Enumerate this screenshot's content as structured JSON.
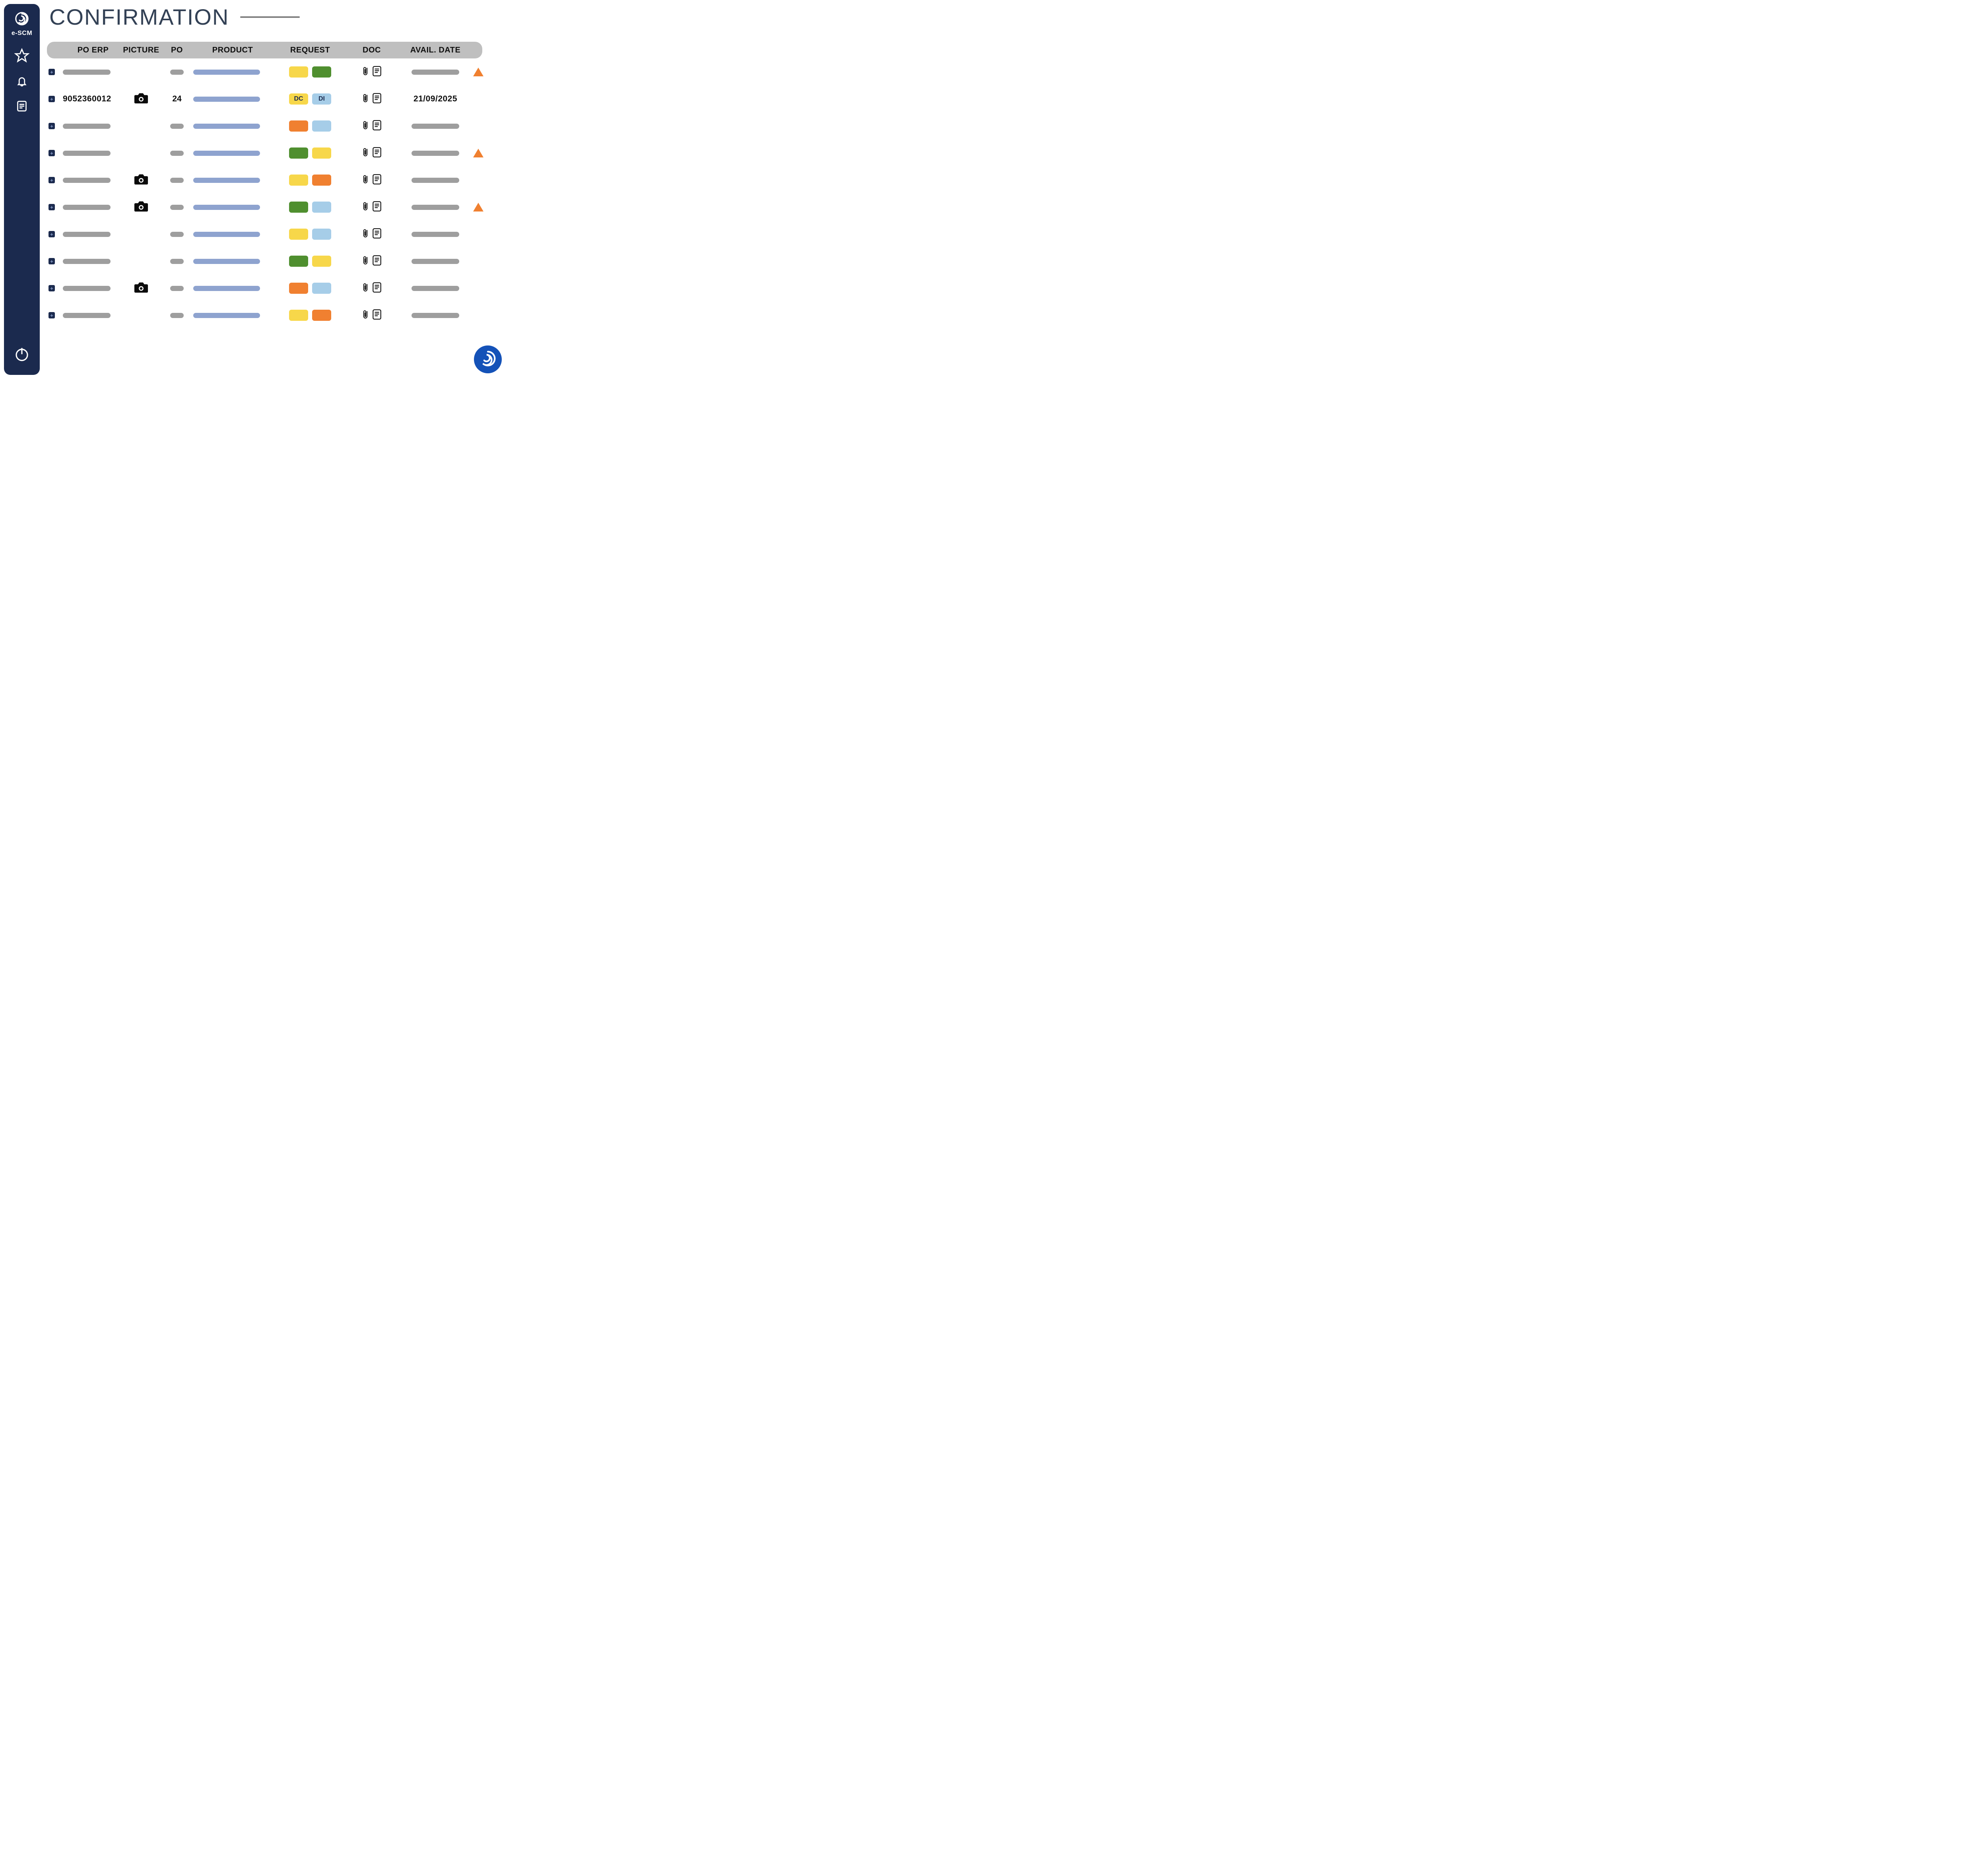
{
  "brand": {
    "name": "e-SCM"
  },
  "page": {
    "title": "CONFIRMATION"
  },
  "colors": {
    "sidebar_bg": "#1b2a4e",
    "header_bg": "#bfbfbf",
    "placeholder_gray": "#9e9e9e",
    "product_bar": "#8ea3cf",
    "alert_orange": "#f08030",
    "pill_yellow": "#f7d74a",
    "pill_green": "#4f8f2f",
    "pill_orange": "#f08030",
    "pill_blue": "#a6cde8",
    "badge_blue": "#1452b8"
  },
  "table": {
    "headers": {
      "po_erp": "PO ERP",
      "picture": "PICTURE",
      "po": "PO",
      "product": "PRODUCT",
      "request": "REQUEST",
      "doc": "DOC",
      "avail_date": "AVAIL. DATE"
    },
    "rows": [
      {
        "po_erp": null,
        "picture": false,
        "po": null,
        "req1": {
          "color": "#f7d74a",
          "label": ""
        },
        "req2": {
          "color": "#4f8f2f",
          "label": ""
        },
        "avail_date": null,
        "alert": true
      },
      {
        "po_erp": "9052360012",
        "picture": true,
        "po": "24",
        "req1": {
          "color": "#f7d74a",
          "label": "DC"
        },
        "req2": {
          "color": "#a6cde8",
          "label": "DI"
        },
        "avail_date": "21/09/2025",
        "alert": false
      },
      {
        "po_erp": null,
        "picture": false,
        "po": null,
        "req1": {
          "color": "#f08030",
          "label": ""
        },
        "req2": {
          "color": "#a6cde8",
          "label": ""
        },
        "avail_date": null,
        "alert": false
      },
      {
        "po_erp": null,
        "picture": false,
        "po": null,
        "req1": {
          "color": "#4f8f2f",
          "label": ""
        },
        "req2": {
          "color": "#f7d74a",
          "label": ""
        },
        "avail_date": null,
        "alert": true
      },
      {
        "po_erp": null,
        "picture": true,
        "po": null,
        "req1": {
          "color": "#f7d74a",
          "label": ""
        },
        "req2": {
          "color": "#f08030",
          "label": ""
        },
        "avail_date": null,
        "alert": false
      },
      {
        "po_erp": null,
        "picture": true,
        "po": null,
        "req1": {
          "color": "#4f8f2f",
          "label": ""
        },
        "req2": {
          "color": "#a6cde8",
          "label": ""
        },
        "avail_date": null,
        "alert": true
      },
      {
        "po_erp": null,
        "picture": false,
        "po": null,
        "req1": {
          "color": "#f7d74a",
          "label": ""
        },
        "req2": {
          "color": "#a6cde8",
          "label": ""
        },
        "avail_date": null,
        "alert": false
      },
      {
        "po_erp": null,
        "picture": false,
        "po": null,
        "req1": {
          "color": "#4f8f2f",
          "label": ""
        },
        "req2": {
          "color": "#f7d74a",
          "label": ""
        },
        "avail_date": null,
        "alert": false
      },
      {
        "po_erp": null,
        "picture": true,
        "po": null,
        "req1": {
          "color": "#f08030",
          "label": ""
        },
        "req2": {
          "color": "#a6cde8",
          "label": ""
        },
        "avail_date": null,
        "alert": false
      },
      {
        "po_erp": null,
        "picture": false,
        "po": null,
        "req1": {
          "color": "#f7d74a",
          "label": ""
        },
        "req2": {
          "color": "#f08030",
          "label": ""
        },
        "avail_date": null,
        "alert": false
      }
    ]
  }
}
